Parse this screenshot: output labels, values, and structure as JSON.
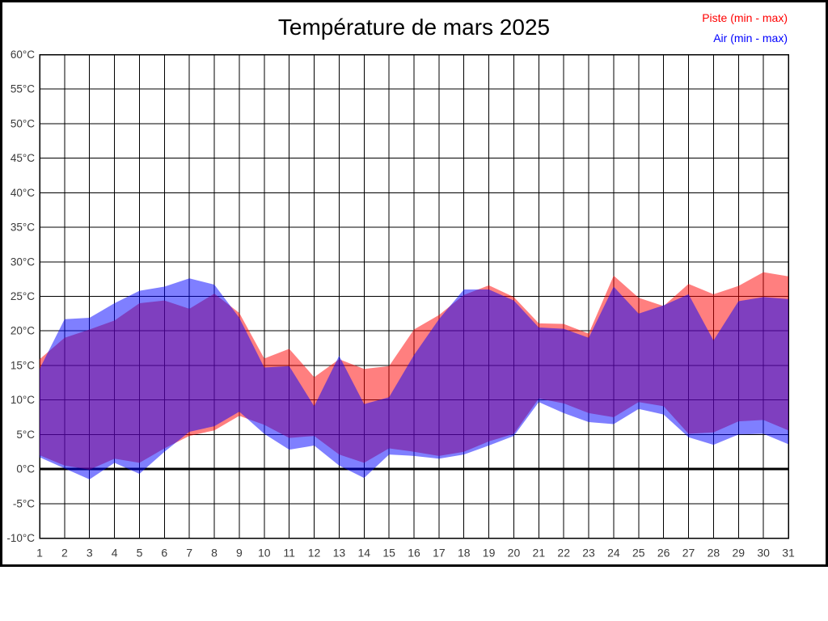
{
  "title": "Température de mars 2025",
  "chart_data": {
    "type": "area",
    "title": "Température de mars 2025",
    "x": [
      1,
      2,
      3,
      4,
      5,
      6,
      7,
      8,
      9,
      10,
      11,
      12,
      13,
      14,
      15,
      16,
      17,
      18,
      19,
      20,
      21,
      22,
      23,
      24,
      25,
      26,
      27,
      28,
      29,
      30,
      31
    ],
    "xlabel": "",
    "ylabel": "",
    "ylim": [
      -10,
      60
    ],
    "y_tick_step": 5,
    "y_tick_suffix": "°C",
    "grid": true,
    "zero_line_bold": true,
    "legend_position": "top-right",
    "series": [
      {
        "name": "Piste (min - max)",
        "color": "#ff0000",
        "fill_opacity": 0.5,
        "max": [
          15.9,
          19.0,
          20.2,
          21.5,
          24.0,
          24.4,
          23.2,
          25.4,
          22.6,
          16.0,
          17.4,
          13.3,
          15.9,
          14.5,
          14.9,
          20.2,
          22.3,
          25.2,
          26.6,
          24.9,
          21.1,
          21.0,
          19.6,
          28.0,
          24.8,
          23.6,
          26.8,
          25.3,
          26.5,
          28.5,
          27.9
        ],
        "min": [
          2.0,
          0.5,
          -0.1,
          1.5,
          0.9,
          3.0,
          4.8,
          5.6,
          7.7,
          6.4,
          4.5,
          4.8,
          2.1,
          0.9,
          3.0,
          2.5,
          1.9,
          2.5,
          4.0,
          5.1,
          10.2,
          9.5,
          8.1,
          7.5,
          9.7,
          9.1,
          5.1,
          5.3,
          6.9,
          7.1,
          5.6
        ]
      },
      {
        "name": "Air (min - max)",
        "color": "#0000ff",
        "fill_opacity": 0.5,
        "max": [
          14.5,
          21.7,
          21.9,
          24.0,
          25.8,
          26.4,
          27.6,
          26.7,
          21.9,
          14.7,
          14.9,
          9.1,
          16.4,
          9.4,
          10.4,
          16.5,
          21.7,
          26.0,
          26.0,
          24.4,
          20.5,
          20.3,
          19.0,
          26.4,
          22.5,
          23.7,
          25.3,
          18.6,
          24.3,
          24.9,
          24.6
        ],
        "min": [
          1.7,
          0.1,
          -1.5,
          0.9,
          -0.7,
          2.5,
          5.4,
          6.2,
          8.3,
          5.1,
          2.8,
          3.4,
          0.5,
          -1.3,
          2.1,
          1.9,
          1.5,
          2.1,
          3.4,
          4.8,
          9.7,
          8.1,
          6.8,
          6.5,
          8.7,
          7.9,
          4.6,
          3.5,
          5.0,
          5.1,
          3.6
        ]
      }
    ]
  },
  "colors": {
    "grid": "#000000",
    "tick_label": "#3a3a3a",
    "frame": "#000000",
    "background": "#ffffff"
  }
}
